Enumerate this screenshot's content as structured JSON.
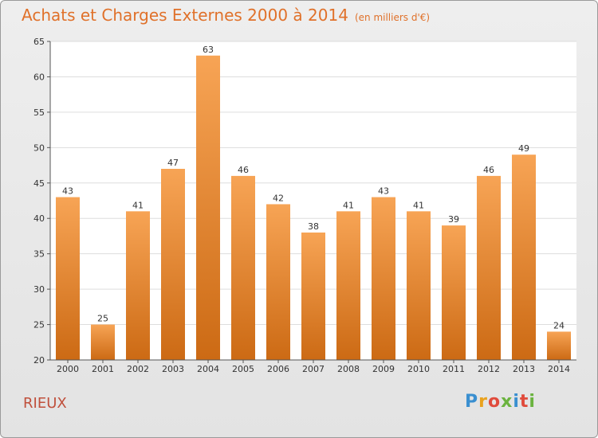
{
  "chart_data": {
    "type": "bar",
    "title": "Achats et Charges Externes 2000 à 2014",
    "subtitle": "(en milliers d'€)",
    "categories": [
      "2000",
      "2001",
      "2002",
      "2003",
      "2004",
      "2005",
      "2006",
      "2007",
      "2008",
      "2009",
      "2010",
      "2011",
      "2012",
      "2013",
      "2014"
    ],
    "values": [
      43,
      25,
      41,
      47,
      63,
      46,
      42,
      38,
      41,
      43,
      41,
      39,
      46,
      49,
      24
    ],
    "ylim": [
      20,
      65
    ],
    "yticks": [
      20,
      25,
      30,
      35,
      40,
      45,
      50,
      55,
      60,
      65
    ],
    "grid": true,
    "bar_color_top": "#f7a455",
    "bar_color_bottom": "#cc6a14"
  },
  "footer": {
    "location": "RIEUX",
    "logo": "Proxiti",
    "logo_colors": [
      "#3a8fd0",
      "#e9a21f",
      "#e04b3c",
      "#6bb33f",
      "#3a8fd0",
      "#e04b3c",
      "#6bb33f"
    ]
  }
}
